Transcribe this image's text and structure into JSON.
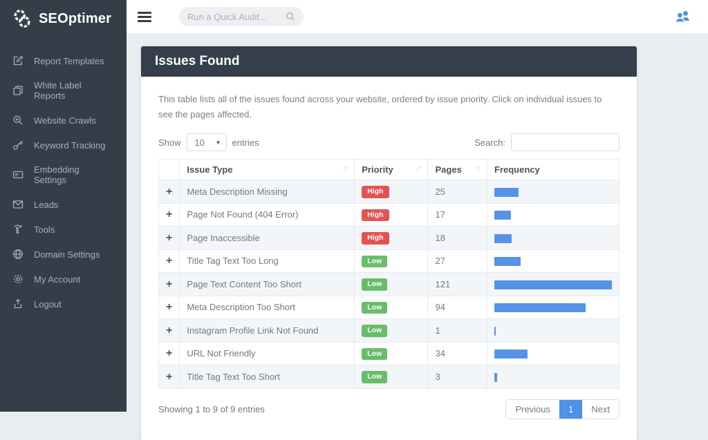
{
  "sidebar": {
    "logo_text": "SEOptimer",
    "items": [
      {
        "label": "Report Templates",
        "icon": "report-templates-icon"
      },
      {
        "label": "White Label Reports",
        "icon": "white-label-reports-icon"
      },
      {
        "label": "Website Crawls",
        "icon": "website-crawls-icon"
      },
      {
        "label": "Keyword Tracking",
        "icon": "keyword-tracking-icon"
      },
      {
        "label": "Embedding Settings",
        "icon": "embedding-settings-icon"
      },
      {
        "label": "Leads",
        "icon": "leads-icon"
      },
      {
        "label": "Tools",
        "icon": "tools-icon"
      },
      {
        "label": "Domain Settings",
        "icon": "domain-settings-icon"
      },
      {
        "label": "My Account",
        "icon": "my-account-icon"
      },
      {
        "label": "Logout",
        "icon": "logout-icon"
      }
    ]
  },
  "topbar": {
    "search_placeholder": "Run a Quick Audit...",
    "user_icon": "users-icon"
  },
  "panel": {
    "title": "Issues Found",
    "description": "This table lists all of the issues found across your website, ordered by issue priority. Click on individual issues to see the pages affected.",
    "show_label": "Show",
    "entries_label": "entries",
    "page_length_value": "10",
    "search_label": "Search:",
    "search_value": "",
    "footer_summary": "Showing 1 to 9 of 9 entries",
    "pagination": {
      "previous": "Previous",
      "current_page": "1",
      "next": "Next"
    }
  },
  "table": {
    "columns": [
      {
        "label": "",
        "sortable": false
      },
      {
        "label": "Issue Type",
        "sortable": true
      },
      {
        "label": "Priority",
        "sortable": true
      },
      {
        "label": "Pages",
        "sortable": true
      },
      {
        "label": "Frequency",
        "sortable": false
      }
    ],
    "frequency_max": 121,
    "rows": [
      {
        "issue": "Meta Description Missing",
        "priority": "High",
        "pages": 25
      },
      {
        "issue": "Page Not Found (404 Error)",
        "priority": "High",
        "pages": 17
      },
      {
        "issue": "Page Inaccessible",
        "priority": "High",
        "pages": 18
      },
      {
        "issue": "Title Tag Text Too Long",
        "priority": "Low",
        "pages": 27
      },
      {
        "issue": "Page Text Content Too Short",
        "priority": "Low",
        "pages": 121
      },
      {
        "issue": "Meta Description Too Short",
        "priority": "Low",
        "pages": 94
      },
      {
        "issue": "Instagram Profile Link Not Found",
        "priority": "Low",
        "pages": 1
      },
      {
        "issue": "URL Not Friendly",
        "priority": "Low",
        "pages": 34
      },
      {
        "issue": "Title Tag Text Too Short",
        "priority": "Low",
        "pages": 3
      }
    ]
  },
  "colors": {
    "sidebar_bg": "#333e48",
    "panel_header_bg": "#343f4b",
    "high_red": "#e65252",
    "low_green": "#68bd6b",
    "bar_blue": "#5592e8",
    "active_page_blue": "#4e90ea",
    "topbar_user_blue": "#4a90e2"
  }
}
